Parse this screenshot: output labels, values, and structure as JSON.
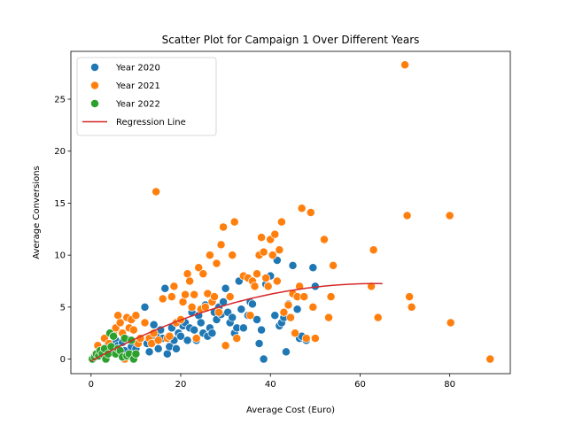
{
  "chart_data": {
    "type": "scatter",
    "title": "Scatter Plot for Campaign 1 Over Different Years",
    "xlabel": "Average Cost (Euro)",
    "ylabel": "Average Conversions",
    "xlim": [
      -4.5,
      93.5
    ],
    "ylim": [
      -1.4,
      29.6
    ],
    "xticks": [
      0,
      20,
      40,
      60,
      80
    ],
    "yticks": [
      0,
      5,
      10,
      15,
      20,
      25
    ],
    "grid": false,
    "legend_position": "top-left",
    "series": [
      {
        "name": "Year 2020",
        "color": "#1f77b4",
        "points": [
          [
            0.5,
            0.2
          ],
          [
            1,
            0.5
          ],
          [
            1.5,
            0.3
          ],
          [
            2,
            0.8
          ],
          [
            2.5,
            1
          ],
          [
            3,
            0.6
          ],
          [
            3.5,
            1.2
          ],
          [
            4,
            0.8
          ],
          [
            4.5,
            1.5
          ],
          [
            5,
            1
          ],
          [
            5.5,
            1.8
          ],
          [
            6,
            1.3
          ],
          [
            7,
            1.6
          ],
          [
            7.5,
            0.8
          ],
          [
            8,
            1.9
          ],
          [
            9,
            1.2
          ],
          [
            10,
            1
          ],
          [
            11,
            2
          ],
          [
            12,
            5
          ],
          [
            12.5,
            1.5
          ],
          [
            13,
            0.7
          ],
          [
            14,
            3.3
          ],
          [
            14.5,
            2.2
          ],
          [
            15,
            1
          ],
          [
            15.5,
            2.8
          ],
          [
            16,
            2
          ],
          [
            16.5,
            6.8
          ],
          [
            17,
            0.5
          ],
          [
            17.5,
            1.2
          ],
          [
            18,
            3
          ],
          [
            18.5,
            1.8
          ],
          [
            19,
            1
          ],
          [
            19.5,
            2.5
          ],
          [
            20,
            2.2
          ],
          [
            20.5,
            3.2
          ],
          [
            21,
            3.5
          ],
          [
            21.5,
            1.8
          ],
          [
            22,
            3
          ],
          [
            22.5,
            4.5
          ],
          [
            23,
            2.8
          ],
          [
            23.5,
            1.8
          ],
          [
            24,
            4.2
          ],
          [
            24.5,
            3.5
          ],
          [
            25,
            2.5
          ],
          [
            25.5,
            5.2
          ],
          [
            26,
            2.2
          ],
          [
            26.5,
            3
          ],
          [
            27,
            2.5
          ],
          [
            27.5,
            4.5
          ],
          [
            28,
            3.8
          ],
          [
            28.5,
            5
          ],
          [
            29,
            4.3
          ],
          [
            29.5,
            5.5
          ],
          [
            30,
            6.8
          ],
          [
            30.5,
            4.5
          ],
          [
            31,
            3.5
          ],
          [
            31.5,
            4
          ],
          [
            32,
            2.5
          ],
          [
            32.5,
            3
          ],
          [
            33,
            7.5
          ],
          [
            33.5,
            4.8
          ],
          [
            34,
            3
          ],
          [
            35,
            4.2
          ],
          [
            35.5,
            5.5
          ],
          [
            36,
            5.3
          ],
          [
            37,
            3.8
          ],
          [
            37.5,
            1.5
          ],
          [
            38,
            2.8
          ],
          [
            38.5,
            0
          ],
          [
            39,
            7.2
          ],
          [
            40,
            8
          ],
          [
            41,
            4.2
          ],
          [
            41.5,
            9.5
          ],
          [
            42,
            3.2
          ],
          [
            42.5,
            3.5
          ],
          [
            43,
            4
          ],
          [
            43.5,
            0.7
          ],
          [
            44,
            5.3
          ],
          [
            45,
            9
          ],
          [
            46,
            4.8
          ],
          [
            46.5,
            2
          ],
          [
            47,
            2.2
          ],
          [
            48,
            1.8
          ],
          [
            49.5,
            8.8
          ],
          [
            50,
            7
          ]
        ]
      },
      {
        "name": "Year 2021",
        "color": "#ff7f0e",
        "points": [
          [
            0.5,
            0.1
          ],
          [
            1,
            0.5
          ],
          [
            1.5,
            1.3
          ],
          [
            2,
            0.8
          ],
          [
            3,
            2
          ],
          [
            4,
            1.5
          ],
          [
            5,
            2.5
          ],
          [
            5.5,
            3
          ],
          [
            6,
            4.2
          ],
          [
            6.5,
            3.5
          ],
          [
            7,
            2.5
          ],
          [
            7.5,
            0
          ],
          [
            8,
            4
          ],
          [
            8.5,
            3
          ],
          [
            9,
            3.8
          ],
          [
            9.5,
            2.8
          ],
          [
            10,
            4.2
          ],
          [
            10.5,
            1.5
          ],
          [
            11,
            2
          ],
          [
            12,
            3.5
          ],
          [
            13,
            2
          ],
          [
            13.5,
            1.5
          ],
          [
            14,
            2.5
          ],
          [
            14.5,
            16.1
          ],
          [
            15,
            1.8
          ],
          [
            16,
            5.8
          ],
          [
            17,
            2
          ],
          [
            17.5,
            2.2
          ],
          [
            18,
            6
          ],
          [
            18.5,
            7
          ],
          [
            19,
            3.5
          ],
          [
            20,
            3.8
          ],
          [
            20.5,
            5.5
          ],
          [
            21,
            6.2
          ],
          [
            21.5,
            8.2
          ],
          [
            22,
            7.5
          ],
          [
            22.5,
            5
          ],
          [
            23,
            6.2
          ],
          [
            23.5,
            2
          ],
          [
            24,
            8.8
          ],
          [
            24.5,
            4.8
          ],
          [
            25,
            8.2
          ],
          [
            25.5,
            5
          ],
          [
            26,
            6.3
          ],
          [
            26.5,
            10
          ],
          [
            27,
            5.5
          ],
          [
            27.5,
            6
          ],
          [
            28,
            9.2
          ],
          [
            28.5,
            4.5
          ],
          [
            29,
            11
          ],
          [
            29.5,
            12.7
          ],
          [
            30,
            1.3
          ],
          [
            31,
            6
          ],
          [
            31.5,
            10
          ],
          [
            32,
            13.2
          ],
          [
            32.5,
            2
          ],
          [
            34,
            8
          ],
          [
            35,
            7.8
          ],
          [
            35.5,
            4.2
          ],
          [
            36,
            7.5
          ],
          [
            36.5,
            7
          ],
          [
            37,
            8.2
          ],
          [
            37.5,
            10
          ],
          [
            38,
            11.7
          ],
          [
            38.5,
            10.3
          ],
          [
            39,
            7.8
          ],
          [
            39.5,
            7
          ],
          [
            40,
            11.5
          ],
          [
            40.5,
            10
          ],
          [
            41,
            12
          ],
          [
            41.5,
            7.5
          ],
          [
            42,
            10.5
          ],
          [
            42.5,
            13.2
          ],
          [
            43,
            4.5
          ],
          [
            44,
            5.2
          ],
          [
            44.5,
            4
          ],
          [
            45,
            6.3
          ],
          [
            45.5,
            2.5
          ],
          [
            46,
            6
          ],
          [
            46.5,
            7
          ],
          [
            47,
            14.5
          ],
          [
            47.5,
            6
          ],
          [
            48,
            2
          ],
          [
            49,
            14.1
          ],
          [
            49.5,
            5
          ],
          [
            50,
            2
          ],
          [
            52,
            11.5
          ],
          [
            53,
            4
          ],
          [
            53.5,
            6
          ],
          [
            54,
            9
          ],
          [
            62.5,
            7
          ],
          [
            63,
            10.5
          ],
          [
            64,
            4
          ],
          [
            70,
            28.3
          ],
          [
            70.5,
            13.8
          ],
          [
            71,
            6
          ],
          [
            71.5,
            5
          ],
          [
            80,
            13.8
          ],
          [
            80.2,
            3.5
          ],
          [
            89,
            0
          ]
        ]
      },
      {
        "name": "Year 2022",
        "color": "#2ca02c",
        "points": [
          [
            0.3,
            0
          ],
          [
            0.8,
            0.2
          ],
          [
            1.2,
            0.5
          ],
          [
            1.7,
            0.3
          ],
          [
            2,
            0.8
          ],
          [
            2.5,
            0.5
          ],
          [
            3,
            1
          ],
          [
            3.3,
            0
          ],
          [
            3.8,
            0.5
          ],
          [
            4.2,
            2.5
          ],
          [
            4.5,
            1.2
          ],
          [
            5,
            2.2
          ],
          [
            5.5,
            0.5
          ],
          [
            6,
            1
          ],
          [
            6.5,
            0.8
          ],
          [
            7,
            0.2
          ],
          [
            7.5,
            2
          ],
          [
            8,
            0.3
          ],
          [
            8.5,
            0.5
          ],
          [
            9,
            1.8
          ],
          [
            9.5,
            0
          ],
          [
            10,
            0.5
          ]
        ]
      }
    ],
    "regression_line": {
      "name": "Regression Line",
      "color": "#d62728",
      "x_range": [
        0,
        65
      ],
      "coefficients": [
        -0.2,
        0.235,
        -0.00185
      ]
    }
  }
}
